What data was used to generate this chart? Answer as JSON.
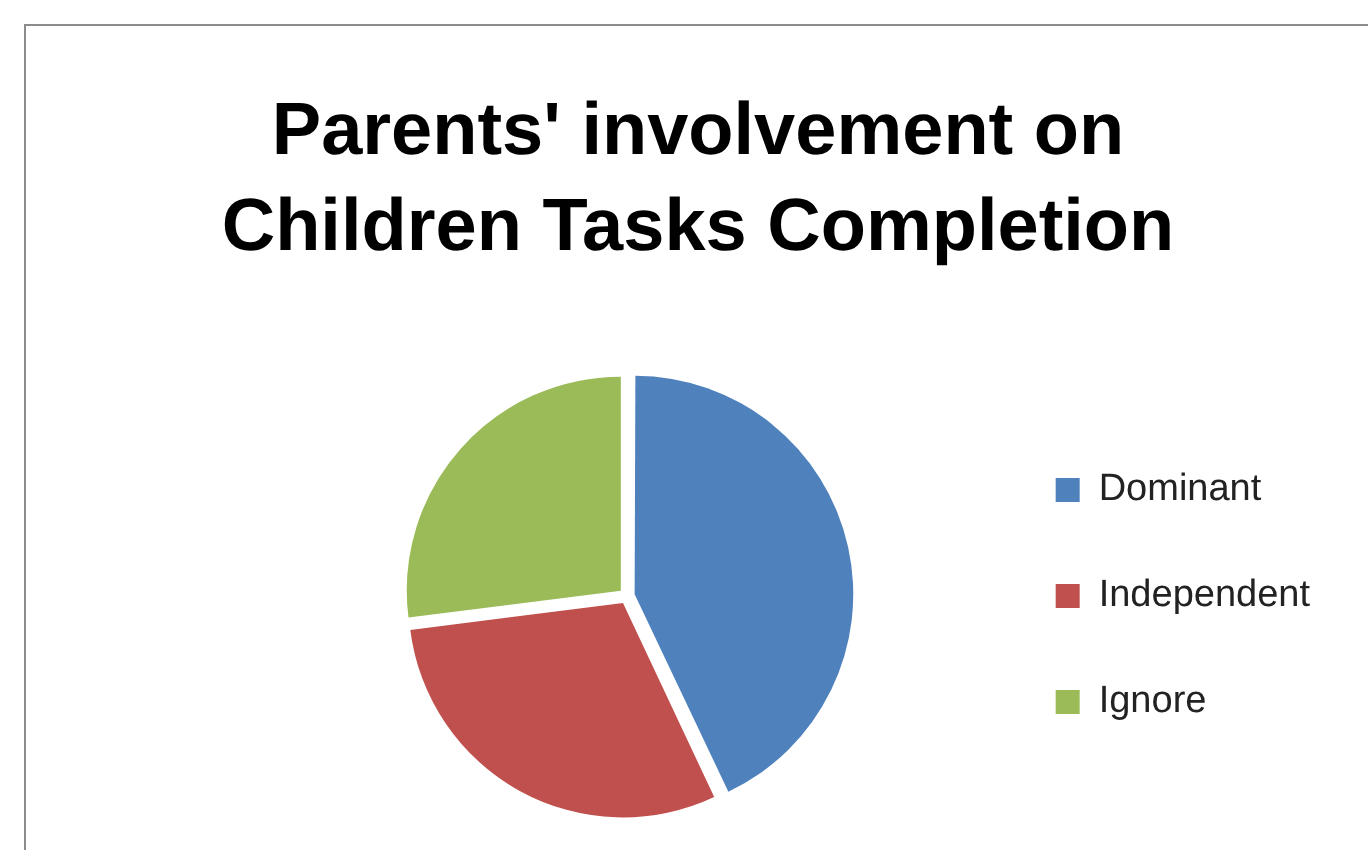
{
  "chart_data": {
    "type": "pie",
    "title": "Parents' involvement on Children Tasks Completion",
    "categories": [
      "Dominant",
      "Independent",
      "Ignore"
    ],
    "values": [
      43,
      30,
      27
    ],
    "colors": [
      "#4f81bd",
      "#c0504d",
      "#9bbb59"
    ],
    "legend": "right"
  }
}
